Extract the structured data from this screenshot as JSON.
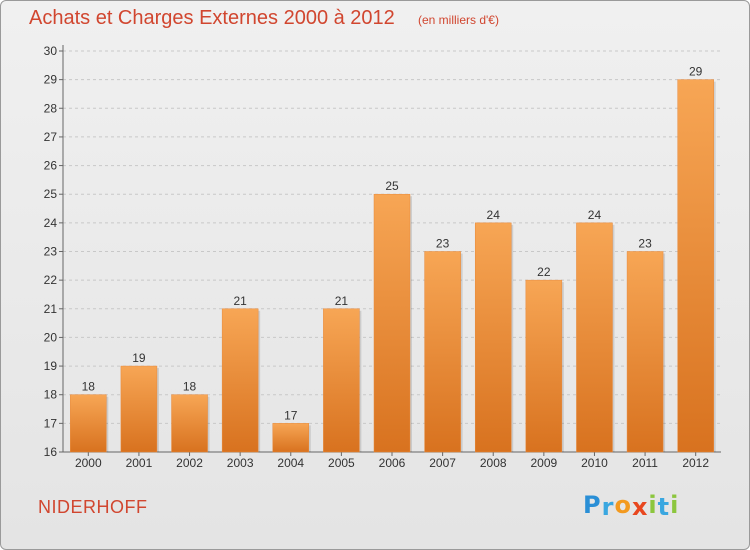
{
  "title": "Achats et Charges Externes 2000 à 2012",
  "subtitle": "(en milliers d'€)",
  "place": "NIDERHOFF",
  "logo": {
    "letters": [
      "P",
      "r",
      "o",
      "x",
      "i",
      "t",
      "i"
    ],
    "colors": [
      "#2a8fd6",
      "#3aa7e0",
      "#f39a1f",
      "#e8471f",
      "#8cc63e",
      "#3aa7e0",
      "#8cc63e"
    ]
  },
  "colors": {
    "bar_light": "#f7a655",
    "bar_dark": "#d8721f",
    "title": "#d1462f"
  },
  "chart_data": {
    "type": "bar",
    "categories": [
      "2000",
      "2001",
      "2002",
      "2003",
      "2004",
      "2005",
      "2006",
      "2007",
      "2008",
      "2009",
      "2010",
      "2011",
      "2012"
    ],
    "values": [
      18,
      19,
      18,
      21,
      17,
      21,
      25,
      23,
      24,
      22,
      24,
      23,
      29
    ],
    "ylim": [
      16,
      30
    ],
    "yticks": [
      16,
      17,
      18,
      19,
      20,
      21,
      22,
      23,
      24,
      25,
      26,
      27,
      28,
      29,
      30
    ],
    "grid": true
  }
}
